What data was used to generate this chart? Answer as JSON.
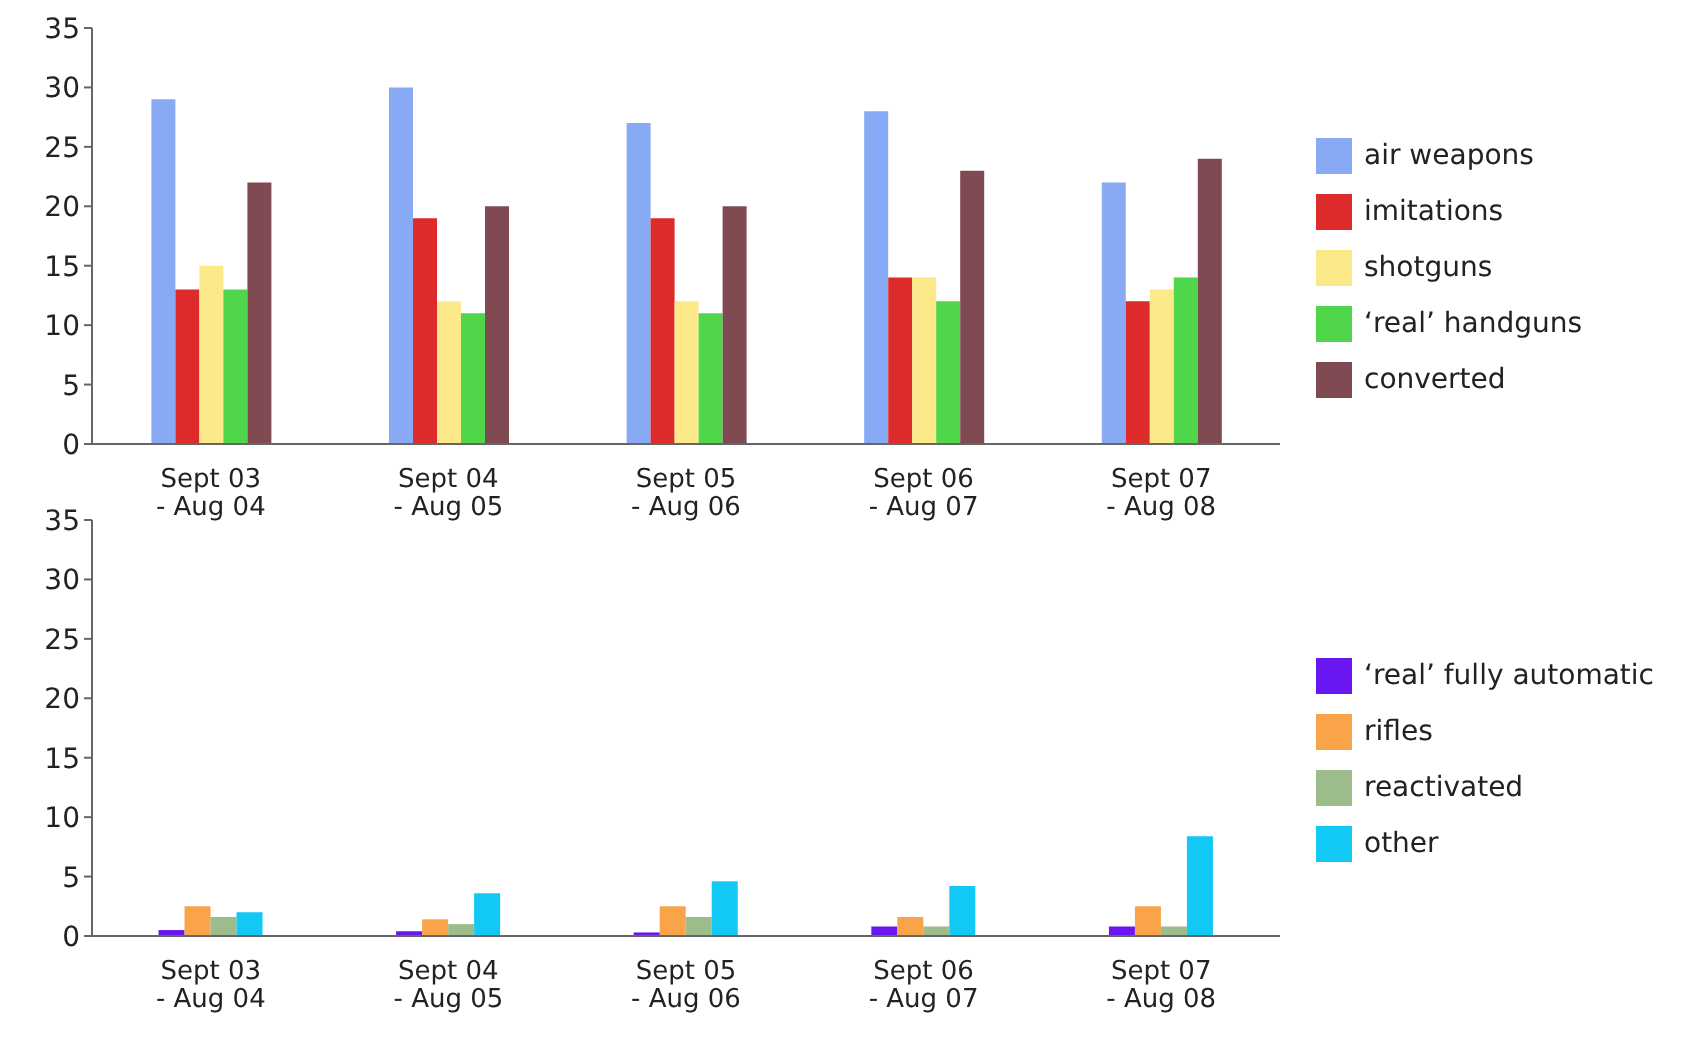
{
  "chart_data": [
    {
      "type": "bar",
      "categories": [
        "Sept 03 - Aug 04",
        "Sept 04 - Aug 05",
        "Sept 05 - Aug 06",
        "Sept 06 - Aug 07",
        "Sept 07 - Aug 08"
      ],
      "ylim": [
        0,
        35
      ],
      "yticks": [
        0,
        5,
        10,
        15,
        20,
        25,
        30,
        35
      ],
      "grid": false,
      "legend": "right",
      "series": [
        {
          "name": "air weapons",
          "color": "#88aaf5",
          "values": [
            29,
            30,
            27,
            28,
            22
          ]
        },
        {
          "name": "imitations",
          "color": "#dd2a2a",
          "values": [
            13,
            19,
            19,
            14,
            12
          ]
        },
        {
          "name": "shotguns",
          "color": "#fbe98a",
          "values": [
            15,
            12,
            12,
            14,
            13
          ]
        },
        {
          "name": "‘real’ handguns",
          "color": "#4fd64a",
          "values": [
            13,
            11,
            11,
            12,
            14
          ]
        },
        {
          "name": "converted",
          "color": "#7f4a52",
          "values": [
            22,
            20,
            20,
            23,
            24
          ]
        }
      ]
    },
    {
      "type": "bar",
      "categories": [
        "Sept 03 - Aug 04",
        "Sept 04 - Aug 05",
        "Sept 05 - Aug 06",
        "Sept 06 - Aug 07",
        "Sept 07 - Aug 08"
      ],
      "ylim": [
        0,
        35
      ],
      "yticks": [
        0,
        5,
        10,
        15,
        20,
        25,
        30,
        35
      ],
      "grid": false,
      "legend": "right",
      "series": [
        {
          "name": "‘real’ fully automatic",
          "color": "#6a16f0",
          "values": [
            0.5,
            0.4,
            0.3,
            0.8,
            0.8
          ]
        },
        {
          "name": "rifles",
          "color": "#f9a449",
          "values": [
            2.5,
            1.4,
            2.5,
            1.6,
            2.5
          ]
        },
        {
          "name": "reactivated",
          "color": "#9cbc8c",
          "values": [
            1.6,
            1,
            1.6,
            0.8,
            0.8
          ]
        },
        {
          "name": "other",
          "color": "#12c8f5",
          "values": [
            2,
            3.6,
            4.6,
            4.2,
            8.4
          ]
        }
      ]
    }
  ]
}
